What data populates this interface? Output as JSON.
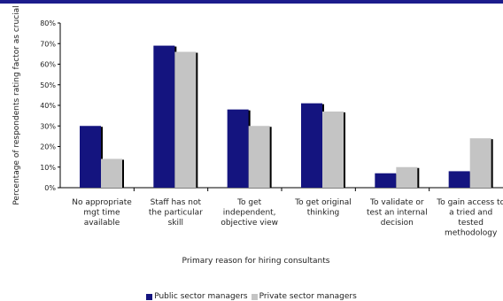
{
  "colors": {
    "public": "#14147f",
    "private": "#c4c4c4",
    "shadow": "#000000",
    "topbar": "#1c1c8c"
  },
  "chart_data": {
    "type": "bar",
    "title": "",
    "xlabel": "Primary reason for hiring consultants",
    "ylabel": "Percentage of respondents rating factor as crucial",
    "ylim": [
      0,
      80
    ],
    "yticks": [
      "0%",
      "10%",
      "20%",
      "30%",
      "40%",
      "50%",
      "60%",
      "70%",
      "80%"
    ],
    "grid": false,
    "legend_position": "bottom",
    "categories": [
      [
        "No appropriate",
        "mgt time",
        "available"
      ],
      [
        "Staff has not",
        "the particular",
        "skill"
      ],
      [
        "To get",
        "independent,",
        "objective view"
      ],
      [
        "To get original",
        "thinking"
      ],
      [
        "To validate or",
        "test an internal",
        "decision"
      ],
      [
        "To gain access to",
        "a tried and",
        "tested",
        "methodology"
      ]
    ],
    "series": [
      {
        "name": "Public sector managers",
        "values": [
          30,
          69,
          38,
          41,
          7,
          8
        ]
      },
      {
        "name": "Private sector managers",
        "values": [
          14,
          66,
          30,
          37,
          10,
          24
        ]
      }
    ]
  }
}
